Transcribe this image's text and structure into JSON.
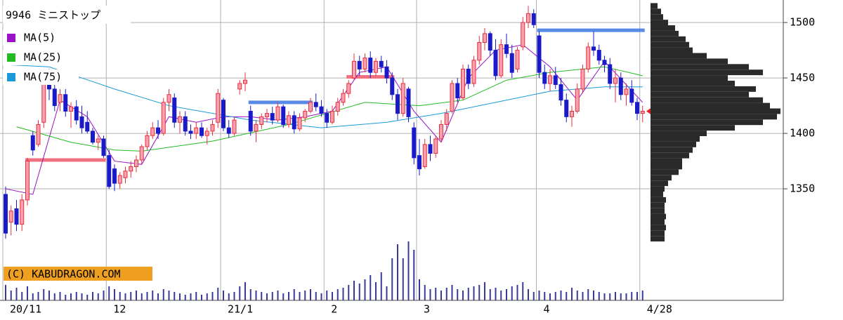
{
  "chart_data": {
    "type": "candlestick",
    "title": "9946 ミニストップ",
    "copyright": "(C) KABUDRAGON.COM",
    "ylim": [
      1249.4,
      1520.3
    ],
    "yticks": [
      1350,
      1400,
      1450,
      1500
    ],
    "grid": true,
    "xticks": [
      {
        "value": 0,
        "label": "20/11"
      },
      {
        "value": 19,
        "label": "12"
      },
      {
        "value": 40,
        "label": "21/1"
      },
      {
        "value": 59,
        "label": "2"
      },
      {
        "value": 76,
        "label": "3"
      },
      {
        "value": 98,
        "label": "4"
      },
      {
        "value": 117,
        "label": "4/28"
      }
    ],
    "up_color": "#e8303c",
    "down_color": "#1a1ac8",
    "volume_color": "#3a3a9a",
    "candles": [
      [
        1345,
        1352,
        1305,
        1310
      ],
      [
        1320,
        1335,
        1308,
        1330
      ],
      [
        1332,
        1340,
        1312,
        1318
      ],
      [
        1318,
        1345,
        1312,
        1340
      ],
      [
        1340,
        1378,
        1335,
        1375
      ],
      [
        1398,
        1402,
        1380,
        1385
      ],
      [
        1390,
        1412,
        1388,
        1408
      ],
      [
        1410,
        1448,
        1405,
        1445
      ],
      [
        1445,
        1458,
        1430,
        1440
      ],
      [
        1440,
        1450,
        1420,
        1425
      ],
      [
        1428,
        1440,
        1420,
        1435
      ],
      [
        1435,
        1440,
        1415,
        1420
      ],
      [
        1420,
        1428,
        1405,
        1424
      ],
      [
        1424,
        1430,
        1408,
        1412
      ],
      [
        1415,
        1425,
        1400,
        1405
      ],
      [
        1410,
        1420,
        1400,
        1402
      ],
      [
        1402,
        1405,
        1390,
        1392
      ],
      [
        1392,
        1398,
        1385,
        1395
      ],
      [
        1395,
        1398,
        1378,
        1380
      ],
      [
        1380,
        1385,
        1350,
        1352
      ],
      [
        1368,
        1372,
        1348,
        1355
      ],
      [
        1355,
        1365,
        1350,
        1362
      ],
      [
        1360,
        1370,
        1355,
        1366
      ],
      [
        1366,
        1375,
        1360,
        1370
      ],
      [
        1370,
        1380,
        1365,
        1376
      ],
      [
        1376,
        1390,
        1372,
        1388
      ],
      [
        1388,
        1402,
        1385,
        1398
      ],
      [
        1398,
        1410,
        1395,
        1405
      ],
      [
        1405,
        1412,
        1395,
        1400
      ],
      [
        1400,
        1432,
        1398,
        1428
      ],
      [
        1428,
        1440,
        1420,
        1435
      ],
      [
        1432,
        1436,
        1405,
        1410
      ],
      [
        1410,
        1420,
        1400,
        1415
      ],
      [
        1415,
        1420,
        1398,
        1402
      ],
      [
        1402,
        1408,
        1395,
        1400
      ],
      [
        1400,
        1410,
        1395,
        1405
      ],
      [
        1405,
        1410,
        1396,
        1398
      ],
      [
        1398,
        1405,
        1390,
        1402
      ],
      [
        1402,
        1412,
        1398,
        1408
      ],
      [
        1410,
        1440,
        1405,
        1436
      ],
      [
        1430,
        1432,
        1402,
        1405
      ],
      [
        1405,
        1412,
        1396,
        1400
      ],
      [
        1400,
        1415,
        1398,
        1412
      ],
      [
        1440,
        1448,
        1435,
        1445
      ],
      [
        1445,
        1455,
        1438,
        1448
      ],
      [
        1420,
        1425,
        1398,
        1402
      ],
      [
        1402,
        1412,
        1392,
        1408
      ],
      [
        1408,
        1418,
        1404,
        1415
      ],
      [
        1415,
        1422,
        1410,
        1418
      ],
      [
        1418,
        1424,
        1408,
        1412
      ],
      [
        1412,
        1428,
        1410,
        1424
      ],
      [
        1424,
        1426,
        1405,
        1408
      ],
      [
        1408,
        1420,
        1405,
        1416
      ],
      [
        1416,
        1420,
        1400,
        1404
      ],
      [
        1404,
        1418,
        1402,
        1414
      ],
      [
        1414,
        1422,
        1410,
        1420
      ],
      [
        1420,
        1432,
        1418,
        1428
      ],
      [
        1428,
        1436,
        1420,
        1424
      ],
      [
        1424,
        1430,
        1415,
        1418
      ],
      [
        1418,
        1422,
        1405,
        1410
      ],
      [
        1410,
        1425,
        1408,
        1420
      ],
      [
        1420,
        1432,
        1416,
        1428
      ],
      [
        1428,
        1440,
        1425,
        1436
      ],
      [
        1436,
        1448,
        1432,
        1445
      ],
      [
        1450,
        1472,
        1448,
        1465
      ],
      [
        1465,
        1470,
        1452,
        1458
      ],
      [
        1458,
        1472,
        1455,
        1468
      ],
      [
        1468,
        1474,
        1450,
        1455
      ],
      [
        1455,
        1468,
        1452,
        1465
      ],
      [
        1465,
        1470,
        1455,
        1460
      ],
      [
        1460,
        1466,
        1445,
        1450
      ],
      [
        1450,
        1455,
        1430,
        1435
      ],
      [
        1435,
        1440,
        1412,
        1418
      ],
      [
        1418,
        1450,
        1415,
        1445
      ],
      [
        1440,
        1442,
        1410,
        1415
      ],
      [
        1405,
        1410,
        1372,
        1378
      ],
      [
        1380,
        1395,
        1362,
        1368
      ],
      [
        1370,
        1395,
        1368,
        1390
      ],
      [
        1390,
        1398,
        1375,
        1382
      ],
      [
        1382,
        1398,
        1378,
        1395
      ],
      [
        1395,
        1412,
        1392,
        1408
      ],
      [
        1408,
        1422,
        1402,
        1418
      ],
      [
        1420,
        1448,
        1418,
        1445
      ],
      [
        1445,
        1450,
        1428,
        1432
      ],
      [
        1432,
        1462,
        1430,
        1458
      ],
      [
        1458,
        1462,
        1440,
        1445
      ],
      [
        1445,
        1470,
        1442,
        1466
      ],
      [
        1466,
        1488,
        1462,
        1482
      ],
      [
        1482,
        1495,
        1475,
        1490
      ],
      [
        1490,
        1492,
        1470,
        1475
      ],
      [
        1475,
        1485,
        1448,
        1452
      ],
      [
        1452,
        1485,
        1450,
        1480
      ],
      [
        1480,
        1490,
        1468,
        1472
      ],
      [
        1472,
        1480,
        1450,
        1455
      ],
      [
        1458,
        1478,
        1455,
        1475
      ],
      [
        1478,
        1505,
        1475,
        1500
      ],
      [
        1500,
        1515,
        1495,
        1508
      ],
      [
        1508,
        1512,
        1495,
        1498
      ],
      [
        1488,
        1492,
        1450,
        1455
      ],
      [
        1455,
        1462,
        1440,
        1445
      ],
      [
        1445,
        1458,
        1438,
        1452
      ],
      [
        1452,
        1460,
        1440,
        1444
      ],
      [
        1444,
        1450,
        1425,
        1430
      ],
      [
        1430,
        1436,
        1410,
        1415
      ],
      [
        1415,
        1425,
        1406,
        1420
      ],
      [
        1420,
        1445,
        1418,
        1440
      ],
      [
        1440,
        1462,
        1436,
        1458
      ],
      [
        1458,
        1482,
        1455,
        1478
      ],
      [
        1478,
        1492,
        1470,
        1475
      ],
      [
        1475,
        1480,
        1462,
        1466
      ],
      [
        1466,
        1470,
        1455,
        1462
      ],
      [
        1462,
        1468,
        1440,
        1445
      ],
      [
        1445,
        1458,
        1428,
        1450
      ],
      [
        1450,
        1455,
        1430,
        1435
      ],
      [
        1435,
        1445,
        1425,
        1440
      ],
      [
        1440,
        1448,
        1425,
        1428
      ],
      [
        1428,
        1432,
        1412,
        1418
      ],
      [
        1418,
        1425,
        1410,
        1420
      ]
    ],
    "volume": [
      22,
      14,
      18,
      12,
      20,
      10,
      12,
      16,
      14,
      10,
      12,
      8,
      10,
      12,
      10,
      8,
      12,
      10,
      14,
      20,
      16,
      12,
      10,
      12,
      14,
      10,
      12,
      14,
      10,
      16,
      14,
      12,
      10,
      8,
      10,
      12,
      8,
      10,
      12,
      18,
      14,
      10,
      12,
      20,
      26,
      16,
      14,
      12,
      10,
      12,
      14,
      10,
      12,
      16,
      12,
      14,
      16,
      12,
      10,
      14,
      12,
      16,
      18,
      22,
      28,
      24,
      30,
      36,
      26,
      40,
      20,
      60,
      80,
      60,
      84,
      72,
      30,
      22,
      16,
      18,
      14,
      18,
      22,
      16,
      14,
      18,
      20,
      22,
      26,
      16,
      18,
      14,
      16,
      20,
      22,
      26,
      16,
      12,
      14,
      12,
      10,
      12,
      14,
      12,
      18,
      14,
      12,
      16,
      14,
      12,
      10,
      10,
      12,
      10,
      10,
      12,
      12,
      14
    ],
    "series": [
      {
        "name": "MA(5)",
        "color": "#9a10c8",
        "x": [
          0,
          5,
          10,
          15,
          20,
          25,
          30,
          35,
          40,
          45,
          50,
          55,
          60,
          65,
          70,
          75,
          80,
          85,
          90,
          95,
          100,
          105,
          110,
          117
        ],
        "values": [
          1350,
          1345,
          1430,
          1415,
          1375,
          1372,
          1415,
          1410,
          1415,
          1415,
          1412,
          1415,
          1420,
          1455,
          1460,
          1420,
          1392,
          1450,
          1475,
          1480,
          1460,
          1430,
          1465,
          1428
        ]
      },
      {
        "name": "MA(25)",
        "color": "#22bb22",
        "x": [
          2,
          12,
          20,
          25,
          38,
          52,
          66,
          76,
          84,
          92,
          100,
          110,
          117
        ],
        "values": [
          1406,
          1392,
          1385,
          1384,
          1393,
          1408,
          1428,
          1425,
          1430,
          1448,
          1455,
          1460,
          1452
        ]
      },
      {
        "name": "MA(75)",
        "color": "#1a9ad8",
        "x": [
          0,
          8,
          20,
          30,
          45,
          58,
          70,
          80,
          90,
          100,
          110,
          117
        ],
        "values": [
          1462,
          1460,
          1440,
          1425,
          1412,
          1405,
          1410,
          1418,
          1428,
          1438,
          1442,
          1442
        ]
      }
    ],
    "levels": [
      {
        "value": 1376,
        "start": 4,
        "end": 18,
        "color": "#f07080"
      },
      {
        "value": 1428,
        "start": 45,
        "end": 56,
        "color": "#5a8ae8"
      },
      {
        "value": 1451,
        "start": 63,
        "end": 71,
        "color": "#f07080"
      },
      {
        "value": 1493,
        "start": 98,
        "end": 117,
        "color": "#5a8ae8"
      }
    ],
    "price_profile": {
      "color": "#2a2a2a",
      "prices": [
        1305,
        1310,
        1315,
        1320,
        1325,
        1330,
        1335,
        1340,
        1345,
        1350,
        1355,
        1360,
        1365,
        1370,
        1375,
        1380,
        1385,
        1390,
        1395,
        1400,
        1405,
        1410,
        1415,
        1420,
        1425,
        1430,
        1435,
        1440,
        1445,
        1450,
        1455,
        1460,
        1465,
        1470,
        1475,
        1480,
        1485,
        1490,
        1495,
        1500,
        1505,
        1510,
        1515
      ],
      "values": [
        20,
        20,
        22,
        20,
        22,
        20,
        20,
        22,
        18,
        20,
        25,
        30,
        40,
        45,
        45,
        55,
        60,
        65,
        70,
        80,
        120,
        160,
        180,
        185,
        170,
        160,
        140,
        150,
        120,
        110,
        160,
        140,
        110,
        80,
        60,
        55,
        50,
        40,
        35,
        25,
        18,
        15,
        10
      ]
    }
  }
}
